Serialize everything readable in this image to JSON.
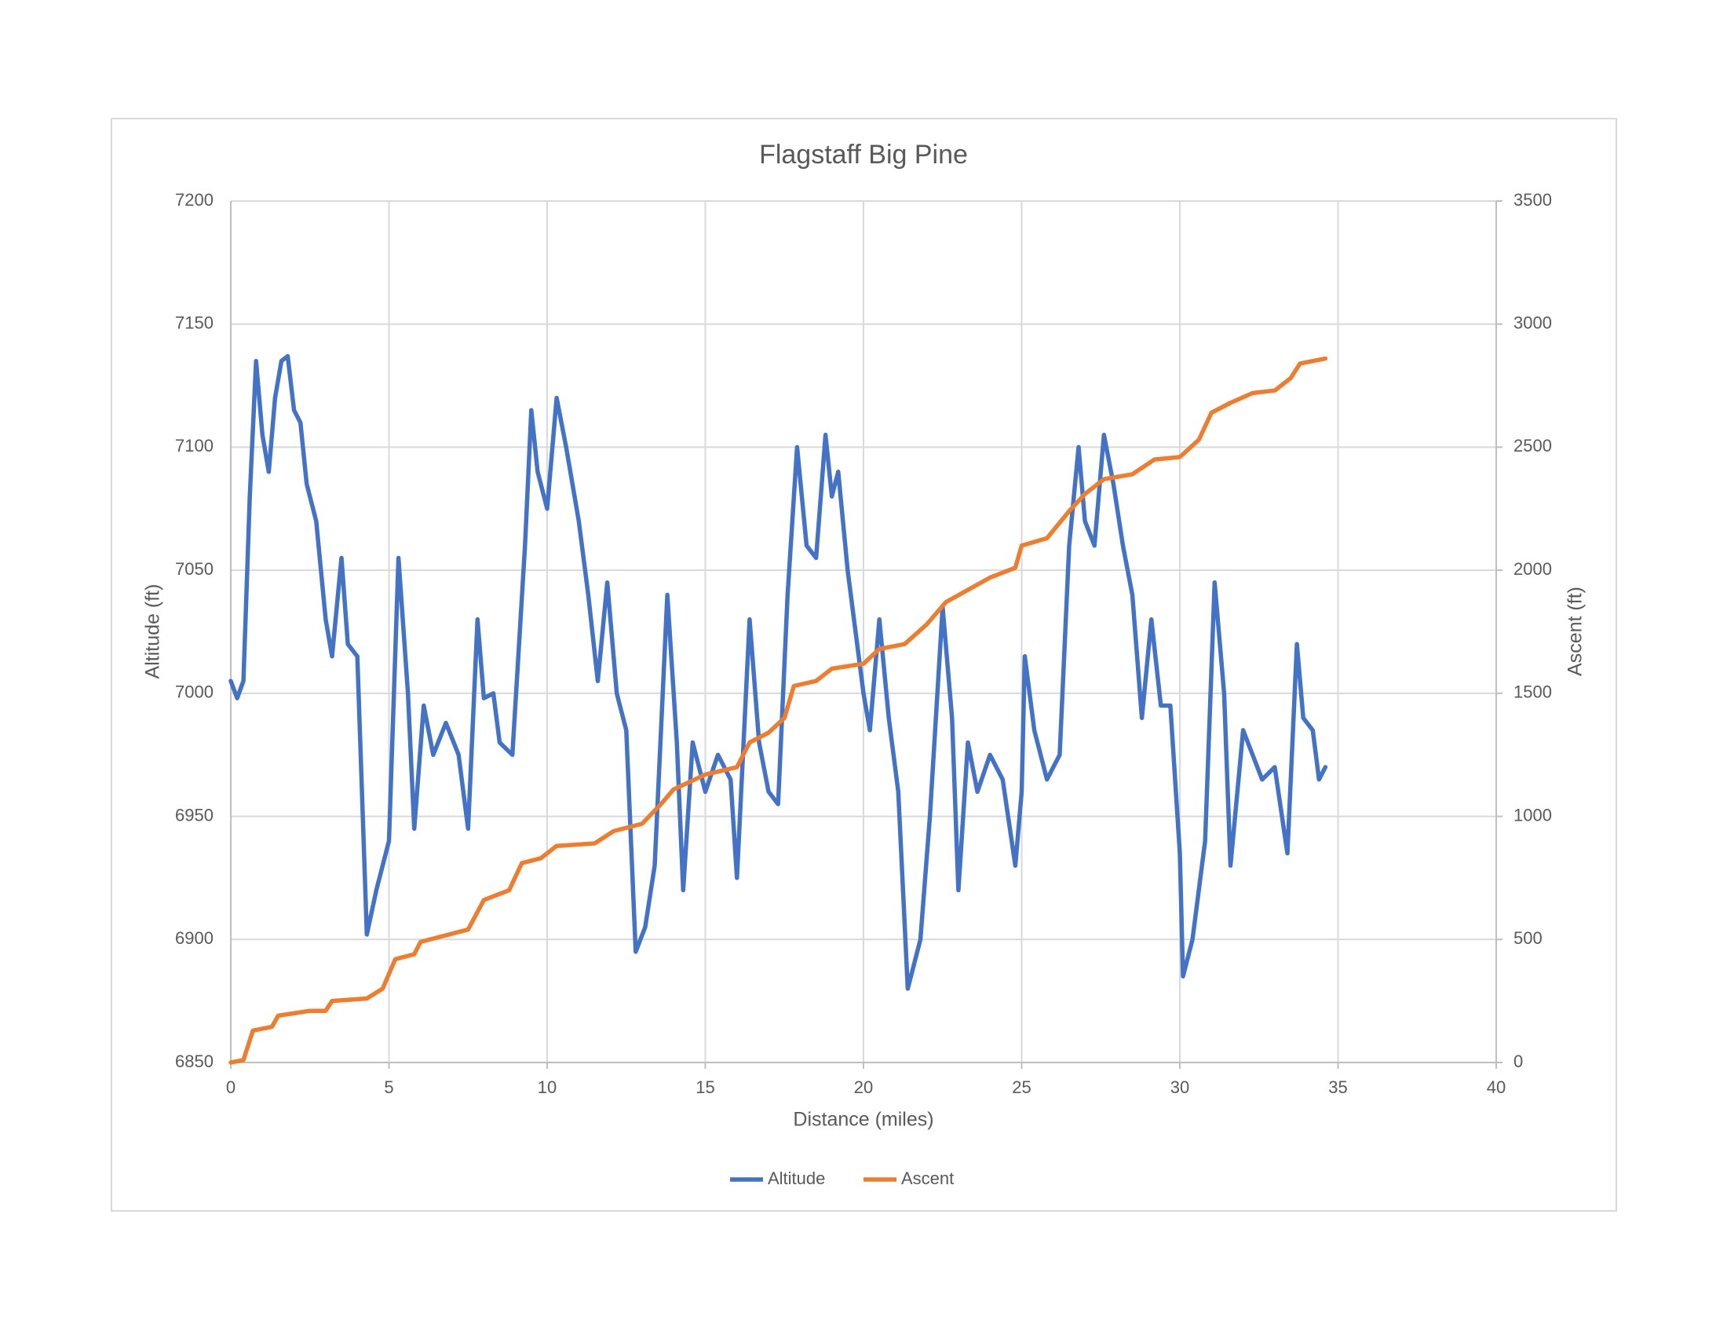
{
  "chart_data": {
    "type": "line",
    "title": "Flagstaff Big Pine",
    "x_label": "Distance (miles)",
    "y_label": "Altitude (ft)",
    "y2_label": "Ascent (ft)",
    "xlim": [
      0,
      40
    ],
    "xticks": [
      0,
      5,
      10,
      15,
      20,
      25,
      30,
      35,
      40
    ],
    "ylim": [
      6850,
      7200
    ],
    "yticks": [
      6850,
      6900,
      6950,
      7000,
      7050,
      7100,
      7150,
      7200
    ],
    "y2lim": [
      0,
      3500
    ],
    "y2ticks": [
      0,
      500,
      1000,
      1500,
      2000,
      2500,
      3000,
      3500
    ],
    "grid": true,
    "legend": "bottom",
    "series": [
      {
        "name": "Altitude",
        "color": "#4472c4",
        "x": [
          0,
          0.2,
          0.4,
          0.6,
          0.8,
          1.0,
          1.2,
          1.4,
          1.6,
          1.8,
          2.0,
          2.2,
          2.4,
          2.7,
          3.0,
          3.2,
          3.5,
          3.7,
          4.0,
          4.3,
          4.6,
          5.0,
          5.3,
          5.6,
          5.8,
          6.1,
          6.4,
          6.8,
          7.2,
          7.5,
          7.8,
          8.0,
          8.3,
          8.5,
          8.9,
          9.3,
          9.5,
          9.7,
          10.0,
          10.3,
          10.6,
          11.0,
          11.3,
          11.6,
          11.9,
          12.2,
          12.5,
          12.8,
          13.1,
          13.4,
          13.8,
          14.1,
          14.3,
          14.6,
          15.0,
          15.4,
          15.8,
          16.0,
          16.4,
          16.7,
          17.0,
          17.3,
          17.6,
          17.9,
          18.2,
          18.5,
          18.8,
          19.0,
          19.2,
          19.5,
          20.0,
          20.2,
          20.5,
          20.8,
          21.1,
          21.4,
          21.8,
          22.1,
          22.5,
          22.8,
          23.0,
          23.3,
          23.6,
          24.0,
          24.4,
          24.8,
          25.0,
          25.1,
          25.4,
          25.8,
          26.2,
          26.5,
          26.8,
          27.0,
          27.3,
          27.6,
          27.9,
          28.2,
          28.5,
          28.8,
          29.1,
          29.4,
          29.7,
          30.0,
          30.1,
          30.4,
          30.8,
          31.1,
          31.4,
          31.6,
          32.0,
          32.3,
          32.6,
          33.0,
          33.4,
          33.7,
          33.9,
          34.2,
          34.4,
          34.6
        ],
        "values": [
          7005,
          6998,
          7005,
          7080,
          7135,
          7105,
          7090,
          7120,
          7135,
          7137,
          7115,
          7110,
          7085,
          7070,
          7030,
          7015,
          7055,
          7020,
          7015,
          6902,
          6920,
          6940,
          7055,
          7000,
          6945,
          6995,
          6975,
          6988,
          6975,
          6945,
          7030,
          6998,
          7000,
          6980,
          6975,
          7060,
          7115,
          7090,
          7075,
          7120,
          7100,
          7070,
          7040,
          7005,
          7045,
          7000,
          6985,
          6895,
          6905,
          6930,
          7040,
          6980,
          6920,
          6980,
          6960,
          6975,
          6965,
          6925,
          7030,
          6980,
          6960,
          6955,
          7040,
          7100,
          7060,
          7055,
          7105,
          7080,
          7090,
          7050,
          7000,
          6985,
          7030,
          6990,
          6960,
          6880,
          6900,
          6950,
          7035,
          6990,
          6920,
          6980,
          6960,
          6975,
          6965,
          6930,
          6960,
          7015,
          6985,
          6965,
          6975,
          7060,
          7100,
          7070,
          7060,
          7105,
          7085,
          7060,
          7040,
          6990,
          7030,
          6995,
          6995,
          6935,
          6885,
          6900,
          6940,
          7045,
          7000,
          6930,
          6985,
          6975,
          6965,
          6970,
          6935,
          7020,
          6990,
          6985,
          6965,
          6970
        ]
      },
      {
        "name": "Ascent",
        "color": "#ed7d31",
        "axis": "y2",
        "x": [
          0,
          0.4,
          0.7,
          1.3,
          1.5,
          2.5,
          3.0,
          3.2,
          4.3,
          4.8,
          5.2,
          5.8,
          6.0,
          7.5,
          8.0,
          8.8,
          9.2,
          9.8,
          10.3,
          11.5,
          12.1,
          13.0,
          13.6,
          14.0,
          14.5,
          15.0,
          16.0,
          16.4,
          17.0,
          17.5,
          17.8,
          18.5,
          19.0,
          20.0,
          20.5,
          21.3,
          22.0,
          22.6,
          23.3,
          24.0,
          24.8,
          25.0,
          25.8,
          26.5,
          27.0,
          27.6,
          28.5,
          29.2,
          30.0,
          30.6,
          31.0,
          31.6,
          32.3,
          33.0,
          33.5,
          33.8,
          34.6
        ],
        "values": [
          0,
          10,
          130,
          145,
          190,
          210,
          210,
          250,
          260,
          300,
          420,
          440,
          490,
          540,
          660,
          700,
          810,
          830,
          880,
          890,
          940,
          970,
          1050,
          1110,
          1140,
          1170,
          1200,
          1300,
          1340,
          1400,
          1530,
          1550,
          1600,
          1620,
          1680,
          1700,
          1780,
          1870,
          1920,
          1970,
          2010,
          2100,
          2130,
          2240,
          2310,
          2370,
          2390,
          2450,
          2460,
          2530,
          2640,
          2680,
          2720,
          2730,
          2780,
          2840,
          2860
        ]
      }
    ]
  }
}
